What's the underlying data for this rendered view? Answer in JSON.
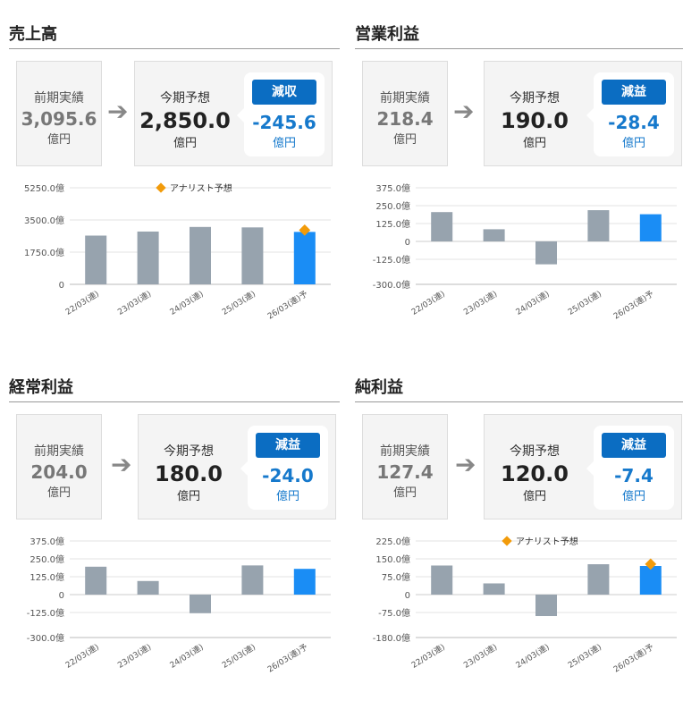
{
  "colors": {
    "past": "#97a3ae",
    "forecast": "#1a8df5",
    "analyst": "#f29b0a",
    "accent": "#0b6dc2"
  },
  "panels": [
    {
      "title": "売上高",
      "prev": {
        "label": "前期実績",
        "value": "3,095.6",
        "unit": "億円"
      },
      "current": {
        "label": "今期予想",
        "value": "2,850.0",
        "unit": "億円"
      },
      "change": {
        "badge": "減収",
        "value": "-245.6",
        "unit": "億円"
      }
    },
    {
      "title": "営業利益",
      "prev": {
        "label": "前期実績",
        "value": "218.4",
        "unit": "億円"
      },
      "current": {
        "label": "今期予想",
        "value": "190.0",
        "unit": "億円"
      },
      "change": {
        "badge": "減益",
        "value": "-28.4",
        "unit": "億円"
      }
    },
    {
      "title": "経常利益",
      "prev": {
        "label": "前期実績",
        "value": "204.0",
        "unit": "億円"
      },
      "current": {
        "label": "今期予想",
        "value": "180.0",
        "unit": "億円"
      },
      "change": {
        "badge": "減益",
        "value": "-24.0",
        "unit": "億円"
      }
    },
    {
      "title": "純利益",
      "prev": {
        "label": "前期実績",
        "value": "127.4",
        "unit": "億円"
      },
      "current": {
        "label": "今期予想",
        "value": "120.0",
        "unit": "億円"
      },
      "change": {
        "badge": "減益",
        "value": "-7.4",
        "unit": "億円"
      }
    }
  ],
  "chart_data": [
    {
      "type": "bar",
      "title": "売上高",
      "categories": [
        "22/03(連)",
        "23/03(連)",
        "24/03(連)",
        "25/03(連)",
        "26/03(連)予"
      ],
      "values": [
        2650,
        2870,
        3120,
        3095.6,
        2850
      ],
      "forecast_index": 4,
      "legend": "アナリスト予想",
      "analyst": [
        null,
        null,
        null,
        null,
        2950
      ],
      "yticks": [
        0,
        1750,
        3500,
        5250
      ],
      "ytick_labels": [
        "0",
        "1750.0億",
        "3500.0億",
        "5250.0億"
      ],
      "ylim": [
        0,
        5250
      ],
      "grid": true
    },
    {
      "type": "bar",
      "title": "営業利益",
      "categories": [
        "22/03(連)",
        "23/03(連)",
        "24/03(連)",
        "25/03(連)",
        "26/03(連)予"
      ],
      "values": [
        205,
        85,
        -160,
        218.4,
        190
      ],
      "forecast_index": 4,
      "yticks": [
        -300,
        -125,
        0,
        125,
        250,
        375
      ],
      "ytick_labels": [
        "-300.0億",
        "-125.0億",
        "0",
        "125.0億",
        "250.0億",
        "375.0億"
      ],
      "ylim": [
        -300,
        375
      ],
      "grid": true
    },
    {
      "type": "bar",
      "title": "経常利益",
      "categories": [
        "22/03(連)",
        "23/03(連)",
        "24/03(連)",
        "25/03(連)",
        "26/03(連)予"
      ],
      "values": [
        195,
        95,
        -130,
        204,
        180
      ],
      "forecast_index": 4,
      "yticks": [
        -300,
        -125,
        0,
        125,
        250,
        375
      ],
      "ytick_labels": [
        "-300.0億",
        "-125.0億",
        "0",
        "125.0億",
        "250.0億",
        "375.0億"
      ],
      "ylim": [
        -300,
        375
      ],
      "grid": true
    },
    {
      "type": "bar",
      "title": "純利益",
      "categories": [
        "22/03(連)",
        "23/03(連)",
        "24/03(連)",
        "25/03(連)",
        "26/03(連)予"
      ],
      "values": [
        122,
        47,
        -90,
        127.4,
        120
      ],
      "forecast_index": 4,
      "legend": "アナリスト予想",
      "analyst": [
        null,
        null,
        null,
        null,
        128
      ],
      "yticks": [
        -180,
        -75,
        0,
        75,
        150,
        225
      ],
      "ytick_labels": [
        "-180.0億",
        "-75.0億",
        "0",
        "75.0億",
        "150.0億",
        "225.0億"
      ],
      "ylim": [
        -180,
        225
      ],
      "grid": true
    }
  ]
}
